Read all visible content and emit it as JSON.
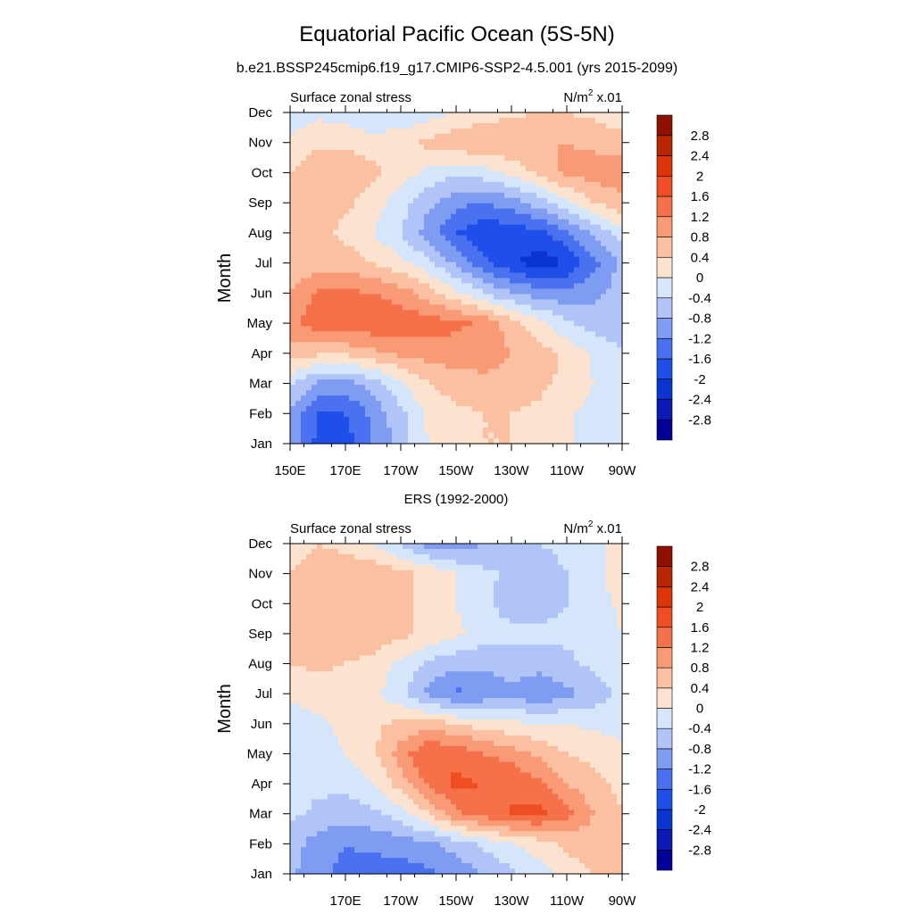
{
  "figure": {
    "title": "Equatorial Pacific Ocean (5S-5N)",
    "subtitle": "b.e21.BSSP245cmip6.f19_g17.CMIP6-SSP2-4.5.001 (yrs 2015-2099)"
  },
  "colors": {
    "levels": [
      -3.2,
      -2.8,
      -2.4,
      -2.0,
      -1.6,
      -1.2,
      -0.8,
      -0.4,
      0,
      0.4,
      0.8,
      1.2,
      1.6,
      2.0,
      2.4,
      2.8,
      3.2
    ],
    "fills": [
      "#000099",
      "#0a1bb5",
      "#0a35d1",
      "#1f4fe8",
      "#4a72f0",
      "#7f9cf3",
      "#b0c4f7",
      "#d6e6fa",
      "#fce3cf",
      "#fbc0a2",
      "#f89a75",
      "#f57149",
      "#ef4d22",
      "#db3508",
      "#b82600",
      "#8e1000"
    ],
    "colorbar_labels": [
      "-2.8",
      "-2.4",
      "-2",
      "-1.6",
      "-1.2",
      "-0.8",
      "-0.4",
      "0",
      "0.4",
      "0.8",
      "1.2",
      "1.6",
      "2",
      "2.4",
      "2.8"
    ]
  },
  "chart_data": [
    {
      "type": "heatmap",
      "title": "",
      "left_label": "Surface zonal stress",
      "right_label_base": "N/m",
      "right_label_exp": "2",
      "right_label_suffix": " x.01",
      "ylabel": "Month",
      "xlabel": "",
      "x_ticks": [
        "150E",
        "170E",
        "170W",
        "150W",
        "130W",
        "110W",
        "90W"
      ],
      "y_ticks": [
        "Jan",
        "Feb",
        "Mar",
        "Apr",
        "May",
        "Jun",
        "Jul",
        "Aug",
        "Sep",
        "Oct",
        "Nov",
        "Dec"
      ],
      "x_range": [
        150,
        270
      ],
      "lon": [
        150,
        160,
        170,
        180,
        190,
        200,
        210,
        220,
        230,
        240,
        250,
        260,
        270
      ],
      "values": [
        [
          -1.0,
          -1.7,
          -1.8,
          -1.2,
          -0.6,
          0.0,
          0.3,
          0.4,
          0.4,
          0.3,
          0.1,
          -0.2,
          -0.3
        ],
        [
          -0.9,
          -1.6,
          -1.6,
          -1.1,
          -0.5,
          0.1,
          0.3,
          0.4,
          0.4,
          0.3,
          0.1,
          -0.2,
          -0.3
        ],
        [
          -0.3,
          -0.9,
          -1.0,
          -0.6,
          -0.1,
          0.4,
          0.6,
          0.7,
          0.7,
          0.5,
          0.3,
          0.0,
          -0.3
        ],
        [
          0.6,
          0.5,
          0.5,
          0.7,
          0.9,
          1.0,
          1.0,
          1.0,
          0.8,
          0.6,
          0.3,
          -0.1,
          -0.4
        ],
        [
          1.1,
          1.4,
          1.5,
          1.5,
          1.5,
          1.4,
          1.3,
          1.1,
          0.6,
          0.1,
          -0.3,
          -0.6,
          -0.6
        ],
        [
          0.8,
          1.3,
          1.3,
          1.2,
          1.0,
          0.6,
          0.1,
          -0.4,
          -0.8,
          -1.0,
          -1.1,
          -0.9,
          -0.6
        ],
        [
          0.4,
          0.6,
          0.6,
          0.4,
          0.1,
          -0.3,
          -0.9,
          -1.5,
          -1.9,
          -2.2,
          -2.0,
          -1.3,
          -0.7
        ],
        [
          0.4,
          0.5,
          0.3,
          0.0,
          -0.4,
          -1.0,
          -1.6,
          -1.9,
          -1.9,
          -1.7,
          -1.3,
          -0.7,
          -0.2
        ],
        [
          0.5,
          0.6,
          0.5,
          0.2,
          -0.2,
          -0.7,
          -1.1,
          -1.2,
          -1.0,
          -0.6,
          -0.1,
          0.4,
          0.7
        ],
        [
          0.4,
          0.7,
          0.8,
          0.5,
          0.2,
          -0.1,
          -0.3,
          -0.2,
          0.1,
          0.5,
          0.9,
          1.0,
          1.0
        ],
        [
          0.1,
          0.3,
          0.3,
          0.2,
          0.3,
          0.5,
          0.7,
          0.8,
          0.8,
          0.8,
          0.8,
          0.7,
          0.6
        ],
        [
          -0.3,
          -0.1,
          -0.2,
          -0.4,
          -0.4,
          -0.2,
          0.0,
          0.2,
          0.3,
          0.4,
          0.4,
          0.3,
          0.1
        ]
      ]
    },
    {
      "type": "heatmap",
      "title": "ERS (1992-2000)",
      "left_label": "Surface zonal stress",
      "right_label_base": "N/m",
      "right_label_exp": "2",
      "right_label_suffix": " x.01",
      "ylabel": "Month",
      "xlabel": "",
      "x_ticks": [
        "",
        "170E",
        "170W",
        "150W",
        "130W",
        "110W",
        "90W"
      ],
      "y_ticks": [
        "Jan",
        "Feb",
        "Mar",
        "Apr",
        "May",
        "Jun",
        "Jul",
        "Aug",
        "Sep",
        "Oct",
        "Nov",
        "Dec"
      ],
      "x_range": [
        150,
        270
      ],
      "lon": [
        150,
        160,
        170,
        180,
        190,
        200,
        210,
        220,
        230,
        240,
        250,
        260,
        270
      ],
      "values": [
        [
          -0.7,
          -1.1,
          -1.3,
          -1.4,
          -1.4,
          -1.3,
          -1.1,
          -0.8,
          -0.5,
          -0.2,
          0.2,
          0.4,
          0.5
        ],
        [
          -0.6,
          -1.0,
          -1.2,
          -1.1,
          -1.0,
          -0.9,
          -0.6,
          -0.3,
          0.0,
          0.2,
          0.5,
          0.6,
          0.6
        ],
        [
          -0.3,
          -0.5,
          -0.6,
          -0.5,
          -0.2,
          0.4,
          1.1,
          1.4,
          1.6,
          1.7,
          1.3,
          0.8,
          0.4
        ],
        [
          -0.2,
          -0.3,
          -0.3,
          0.0,
          0.6,
          1.3,
          1.7,
          1.6,
          1.6,
          1.3,
          0.8,
          0.5,
          0.3
        ],
        [
          -0.1,
          -0.1,
          0.0,
          0.3,
          1.0,
          1.6,
          1.5,
          1.2,
          1.0,
          0.7,
          0.4,
          0.3,
          0.2
        ],
        [
          -0.3,
          -0.1,
          0.1,
          0.3,
          0.5,
          0.6,
          0.4,
          0.2,
          0.1,
          0.0,
          0.0,
          -0.1,
          -0.2
        ],
        [
          0.1,
          0.2,
          0.2,
          0.1,
          -0.3,
          -0.9,
          -1.3,
          -1.1,
          -0.9,
          -1.2,
          -0.9,
          -0.6,
          -0.3
        ],
        [
          0.4,
          0.5,
          0.4,
          0.3,
          -0.1,
          -0.5,
          -0.7,
          -0.7,
          -0.6,
          -0.6,
          -0.5,
          -0.3,
          -0.1
        ],
        [
          0.5,
          0.6,
          0.6,
          0.6,
          0.5,
          0.3,
          0.1,
          -0.2,
          -0.3,
          -0.3,
          -0.3,
          -0.2,
          0.0
        ],
        [
          0.5,
          0.6,
          0.6,
          0.6,
          0.5,
          0.3,
          0.0,
          -0.3,
          -0.6,
          -0.6,
          -0.4,
          -0.2,
          0.1
        ],
        [
          0.4,
          0.6,
          0.6,
          0.7,
          0.5,
          0.3,
          0.0,
          -0.3,
          -0.5,
          -0.6,
          -0.4,
          -0.1,
          0.2
        ],
        [
          0.2,
          0.4,
          0.3,
          0.0,
          -0.5,
          -1.0,
          -1.1,
          -0.8,
          -0.5,
          -0.4,
          -0.3,
          -0.1,
          0.1
        ]
      ]
    }
  ]
}
